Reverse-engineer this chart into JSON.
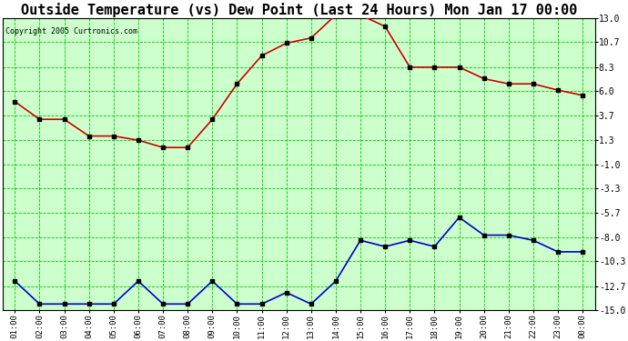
{
  "title": "Outside Temperature (vs) Dew Point (Last 24 Hours) Mon Jan 17 00:00",
  "copyright": "Copyright 2005 Curtronics.com",
  "x_labels": [
    "01:00",
    "02:00",
    "03:00",
    "04:00",
    "05:00",
    "06:00",
    "07:00",
    "08:00",
    "09:00",
    "10:00",
    "11:00",
    "12:00",
    "13:00",
    "14:00",
    "15:00",
    "16:00",
    "17:00",
    "18:00",
    "19:00",
    "20:00",
    "21:00",
    "22:00",
    "23:00",
    "00:00"
  ],
  "temp_data": [
    5.0,
    3.3,
    3.3,
    1.7,
    1.7,
    1.3,
    0.6,
    0.6,
    3.3,
    6.7,
    9.4,
    10.6,
    11.1,
    13.3,
    13.3,
    12.2,
    8.3,
    8.3,
    8.3,
    7.2,
    6.7,
    6.7,
    6.1,
    5.6
  ],
  "dew_data": [
    -12.2,
    -14.4,
    -14.4,
    -14.4,
    -14.4,
    -12.2,
    -14.4,
    -14.4,
    -12.2,
    -14.4,
    -14.4,
    -13.3,
    -14.4,
    -12.2,
    -8.3,
    -8.9,
    -8.3,
    -8.9,
    -6.1,
    -7.8,
    -7.8,
    -8.3,
    -9.4,
    -9.4
  ],
  "temp_color": "#cc0000",
  "dew_color": "#0000cc",
  "grid_color": "#00cc00",
  "bg_color": "#ccffcc",
  "yticks": [
    13.0,
    10.7,
    8.3,
    6.0,
    3.7,
    1.3,
    -1.0,
    -3.3,
    -5.7,
    -8.0,
    -10.3,
    -12.7,
    -15.0
  ],
  "ylim": [
    -15.0,
    13.0
  ],
  "title_fontsize": 11,
  "marker_size": 3,
  "figwidth": 6.9,
  "figheight": 3.75,
  "dpi": 100
}
